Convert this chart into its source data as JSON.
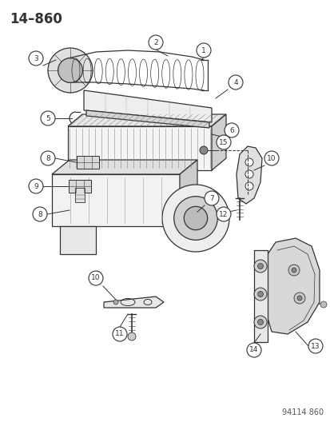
{
  "title": "14–860",
  "background_color": "#ffffff",
  "part_number_label": "94114 860",
  "line_color": "#333333",
  "light_fill": "#f0f0f0",
  "mid_fill": "#d8d8d8",
  "dark_fill": "#aaaaaa"
}
